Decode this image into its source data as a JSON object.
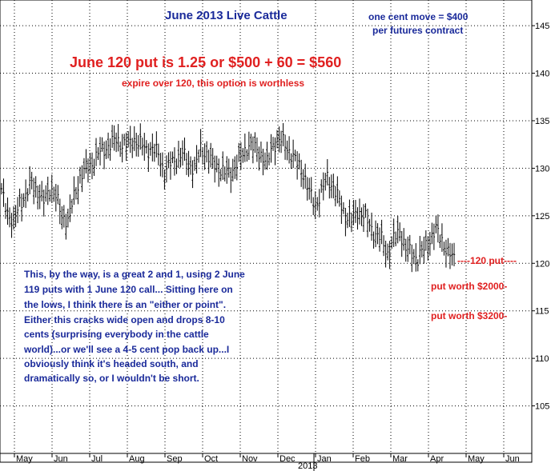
{
  "chart_data": {
    "type": "ohlc",
    "title": "June 2013 Live Cattle",
    "subtitle": [
      "one cent move = $400",
      "per futures contract"
    ],
    "headline": "June 120 put is 1.25 or $500 + 60 = $560",
    "subheadline": "expire over 120, this option is worthless",
    "commentary": [
      "This, by the way, is a great 2 and 1, using 2 June",
      "119 puts with 1 June 120 call... Sitting here on",
      "the lows, I think there is an \"either or point\".",
      "Either this cracks wide open and drops 8-10",
      "cents (surprising everybody in the cattle",
      "world)...or we'll see a 4-5 cent pop back up...I",
      "obviously think it's headed south, and",
      "dramatically so, or I wouldn't be short."
    ],
    "annotations": [
      {
        "text": "----120 put----",
        "y": 120.1
      },
      {
        "text": "put worth $2000-",
        "y": 116.2
      },
      {
        "text": "put worth $3200-",
        "y": 112.7
      }
    ],
    "ylim": [
      100,
      147.7
    ],
    "y_ticks": [
      105,
      110,
      115,
      120,
      125,
      130,
      135,
      140,
      145
    ],
    "y_tick_labels": [
      "105",
      "110",
      "115",
      "120",
      "125",
      "130",
      "135",
      "140",
      "145"
    ],
    "x_months": [
      "May",
      "Jun",
      "Jul",
      "Aug",
      "Sep",
      "Oct",
      "Nov",
      "Dec",
      "Jan",
      "Feb",
      "Mar",
      "Apr",
      "May",
      "Jun"
    ],
    "year_label": "2013",
    "year_start_index": 8,
    "grid": true,
    "series_anchors": [
      [
        0,
        127.5
      ],
      [
        3,
        125.5
      ],
      [
        6,
        124.0
      ],
      [
        9,
        126.5
      ],
      [
        12,
        127.0
      ],
      [
        15,
        128.5
      ],
      [
        18,
        127.5
      ],
      [
        21,
        126.5
      ],
      [
        24,
        128.0
      ],
      [
        27,
        127.0
      ],
      [
        30,
        125.0
      ],
      [
        33,
        124.5
      ],
      [
        36,
        127.0
      ],
      [
        39,
        129.0
      ],
      [
        42,
        130.0
      ],
      [
        45,
        130.5
      ],
      [
        48,
        131.5
      ],
      [
        51,
        132.0
      ],
      [
        54,
        132.5
      ],
      [
        57,
        133.0
      ],
      [
        60,
        132.5
      ],
      [
        63,
        132.5
      ],
      [
        66,
        133.0
      ],
      [
        69,
        132.5
      ],
      [
        72,
        132.0
      ],
      [
        75,
        132.0
      ],
      [
        78,
        131.5
      ],
      [
        81,
        129.5
      ],
      [
        84,
        130.5
      ],
      [
        87,
        131.0
      ],
      [
        90,
        131.5
      ],
      [
        93,
        130.5
      ],
      [
        96,
        130.0
      ],
      [
        99,
        132.0
      ],
      [
        102,
        131.5
      ],
      [
        105,
        130.5
      ],
      [
        108,
        130.0
      ],
      [
        111,
        129.5
      ],
      [
        114,
        129.5
      ],
      [
        117,
        130.5
      ],
      [
        120,
        131.5
      ],
      [
        123,
        132.5
      ],
      [
        126,
        132.0
      ],
      [
        129,
        131.5
      ],
      [
        132,
        130.5
      ],
      [
        135,
        132.5
      ],
      [
        138,
        133.0
      ],
      [
        141,
        132.5
      ],
      [
        144,
        131.5
      ],
      [
        147,
        130.5
      ],
      [
        150,
        129.5
      ],
      [
        153,
        127.5
      ],
      [
        156,
        126.0
      ],
      [
        159,
        127.5
      ],
      [
        162,
        129.0
      ],
      [
        165,
        128.0
      ],
      [
        168,
        126.5
      ],
      [
        171,
        125.0
      ],
      [
        174,
        124.5
      ],
      [
        177,
        125.5
      ],
      [
        180,
        125.0
      ],
      [
        183,
        124.0
      ],
      [
        186,
        123.0
      ],
      [
        189,
        122.5
      ],
      [
        192,
        121.0
      ],
      [
        195,
        122.5
      ],
      [
        198,
        123.5
      ],
      [
        201,
        121.5
      ],
      [
        204,
        121.0
      ],
      [
        207,
        120.5
      ],
      [
        210,
        121.5
      ],
      [
        213,
        122.5
      ],
      [
        216,
        123.5
      ],
      [
        219,
        122.5
      ],
      [
        222,
        121.0
      ],
      [
        225,
        120.5
      ]
    ]
  }
}
